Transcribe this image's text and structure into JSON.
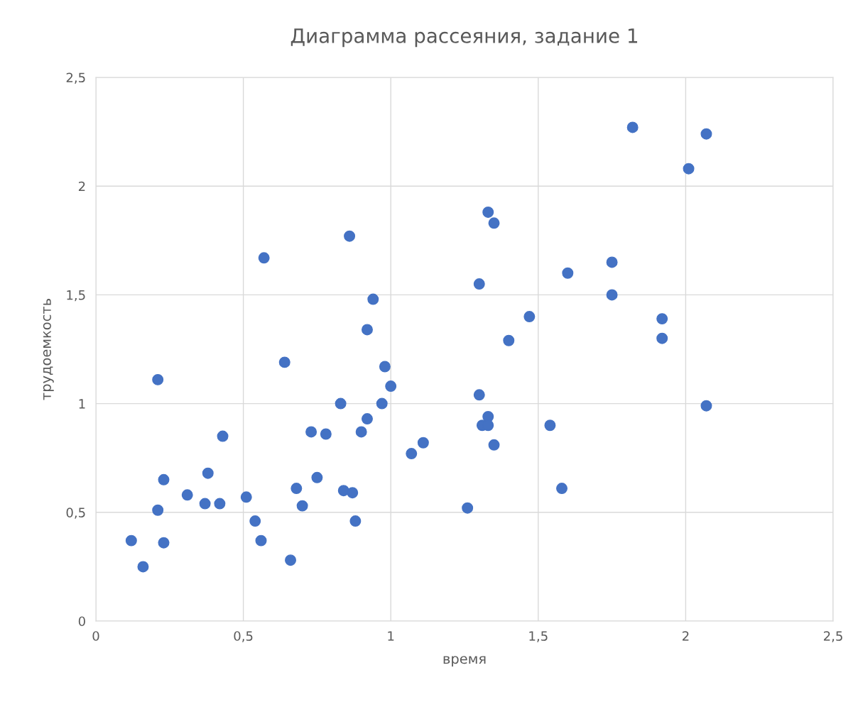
{
  "chart_data": {
    "type": "scatter",
    "title": "Диаграмма рассеяния, задание 1",
    "xlabel": "время",
    "ylabel": "трудоемкость",
    "x": [
      0.12,
      0.16,
      0.21,
      0.21,
      0.23,
      0.23,
      0.31,
      0.37,
      0.38,
      0.42,
      0.43,
      0.51,
      0.54,
      0.56,
      0.57,
      0.64,
      0.66,
      0.68,
      0.7,
      0.73,
      0.75,
      0.78,
      0.83,
      0.84,
      0.86,
      0.87,
      0.88,
      0.9,
      0.92,
      0.92,
      0.94,
      0.97,
      0.98,
      1.0,
      1.07,
      1.11,
      1.26,
      1.3,
      1.3,
      1.31,
      1.33,
      1.33,
      1.33,
      1.35,
      1.35,
      1.4,
      1.47,
      1.54,
      1.58,
      1.6,
      1.75,
      1.75,
      1.82,
      1.92,
      1.92,
      2.01,
      2.07,
      2.07
    ],
    "series": [
      {
        "color": "#4472c4",
        "values": [
          0.37,
          0.25,
          1.11,
          0.51,
          0.36,
          0.65,
          0.58,
          0.54,
          0.68,
          0.54,
          0.85,
          0.57,
          0.46,
          0.37,
          1.67,
          1.19,
          0.28,
          0.61,
          0.53,
          0.87,
          0.66,
          0.86,
          1.0,
          0.6,
          1.77,
          0.59,
          0.46,
          0.87,
          1.34,
          0.93,
          1.48,
          1.0,
          1.17,
          1.08,
          0.77,
          0.82,
          0.52,
          1.55,
          1.04,
          0.9,
          1.88,
          0.94,
          0.9,
          1.83,
          0.81,
          1.29,
          1.4,
          0.9,
          0.61,
          1.6,
          1.65,
          1.5,
          2.27,
          1.39,
          1.3,
          2.08,
          2.24,
          0.99
        ]
      }
    ],
    "xlim": [
      0,
      2.5
    ],
    "ylim": [
      0,
      2.5
    ],
    "xticks": [
      0,
      {
        "value": 0.5,
        "label": "0,5"
      },
      1,
      {
        "value": 1.5,
        "label": "1,5"
      },
      2,
      {
        "value": 2.5,
        "label": "2,5"
      }
    ],
    "yticks": [
      0,
      {
        "value": 0.5,
        "label": "0,5"
      },
      1,
      {
        "value": 1.5,
        "label": "1,5"
      },
      2,
      {
        "value": 2.5,
        "label": "2,5"
      }
    ],
    "grid": true,
    "marker": "circle",
    "legend": false
  }
}
